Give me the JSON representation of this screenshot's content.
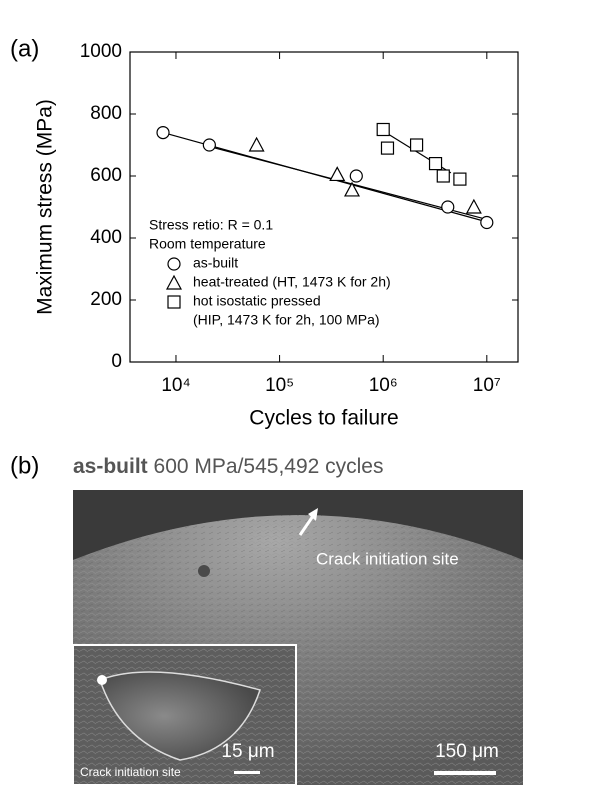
{
  "panel_a": {
    "label": "(a)",
    "chart_data": {
      "type": "scatter",
      "x_label": "Cycles to failure",
      "y_label": "Maximum stress (MPa)",
      "xlog": true,
      "xlim": [
        3600,
        20000000
      ],
      "ylim": [
        0,
        1000
      ],
      "xticks": [
        {
          "value": 10000,
          "label": "10⁴"
        },
        {
          "value": 100000,
          "label": "10⁵"
        },
        {
          "value": 1000000,
          "label": "10⁶"
        },
        {
          "value": 10000000,
          "label": "10⁷"
        }
      ],
      "yticks": [
        0,
        200,
        400,
        600,
        800,
        1000
      ],
      "legend_header": [
        "Stress retio: R = 0.1",
        "Room temperature"
      ],
      "series": [
        {
          "name": "as-built",
          "marker": "circle",
          "color": "#000000",
          "x": [
            7500,
            21000,
            550000,
            4200000,
            10000000
          ],
          "values": [
            740,
            700,
            600,
            500,
            450
          ],
          "fit": {
            "x": [
              7500,
              10000000
            ],
            "values": [
              740,
              452
            ]
          }
        },
        {
          "name": "heat-treated (HT, 1473 K for 2h)",
          "marker": "triangle",
          "color": "#000000",
          "x": [
            60000,
            360000,
            500000,
            7500000
          ],
          "values": [
            700,
            605,
            555,
            500
          ],
          "fit": {
            "x": [
              21000,
              10000000
            ],
            "values": [
              695,
              460
            ]
          }
        },
        {
          "name": "hot isostatic pressed",
          "name_continued": "(HIP, 1473 K for 2h, 100 MPa)",
          "marker": "square",
          "color": "#000000",
          "x": [
            1000000,
            1100000,
            2100000,
            3200000,
            3800000,
            5500000
          ],
          "values": [
            750,
            690,
            700,
            640,
            600,
            590
          ],
          "fit": {
            "x": [
              1000000,
              4500000
            ],
            "values": [
              745,
              610
            ]
          }
        }
      ]
    }
  },
  "panel_b": {
    "label": "(b)",
    "title_bold": "as-built",
    "title_rest": "600 MPa/545,492 cycles",
    "annotation": "Crack initiation site",
    "scale_bar": "150 μm",
    "inset_scale_bar": "15 μm",
    "inset_caption": "Crack initiation site"
  }
}
